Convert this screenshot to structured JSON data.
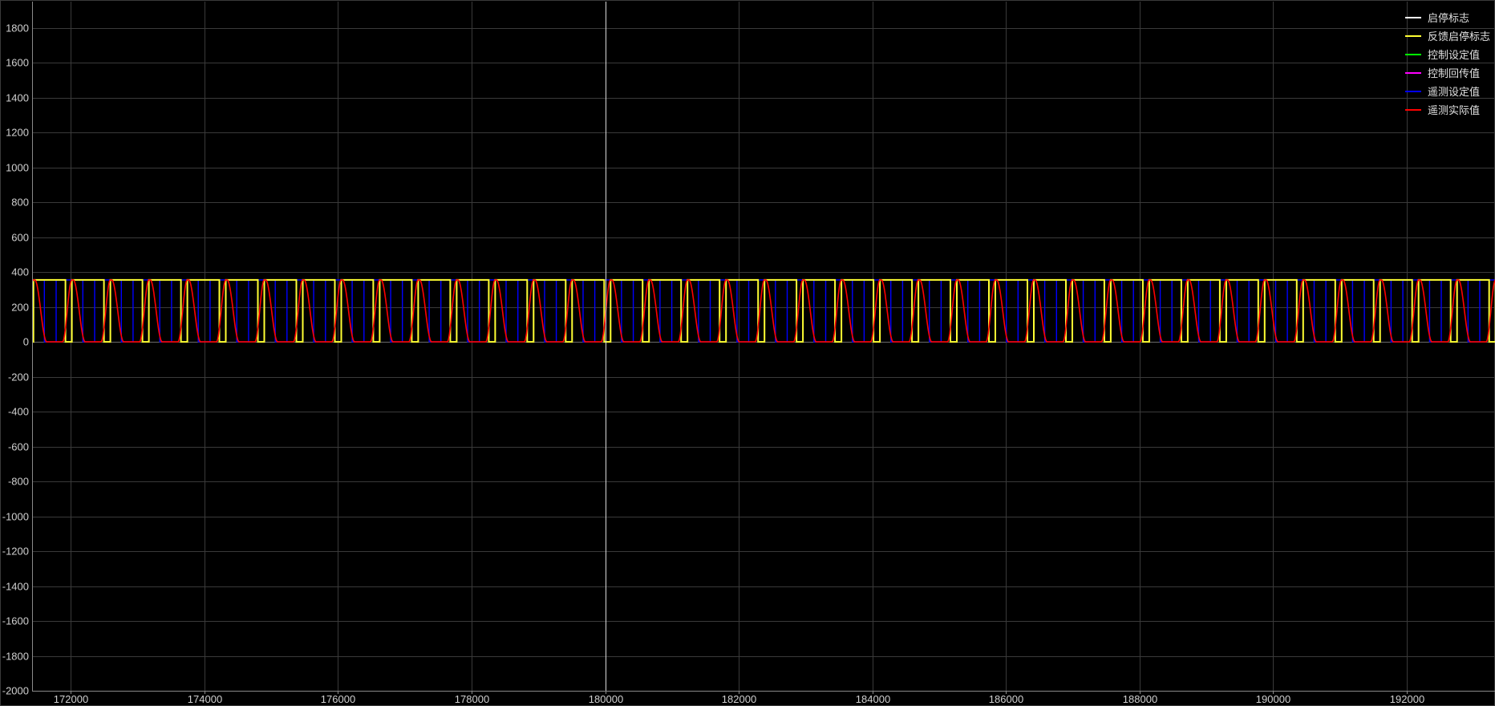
{
  "chart_data": {
    "type": "line",
    "title": "",
    "xlabel": "",
    "ylabel": "",
    "xlim": [
      171420,
      193320
    ],
    "ylim": [
      -2000,
      1950
    ],
    "x_ticks": [
      172000,
      174000,
      176000,
      178000,
      180000,
      182000,
      184000,
      186000,
      188000,
      190000,
      192000
    ],
    "y_ticks": [
      1800,
      1600,
      1400,
      1200,
      1000,
      800,
      600,
      400,
      200,
      0,
      -200,
      -400,
      -600,
      -800,
      -1000,
      -1200,
      -1400,
      -1600,
      -1800,
      -2000
    ],
    "grid": true,
    "legend_position": "top-right",
    "cursor_x": 180000,
    "series": [
      {
        "name": "启停标志",
        "color": "#ffffff",
        "values": []
      },
      {
        "name": "反馈启停标志",
        "color": "#ffff33",
        "pattern": "square",
        "high": 355,
        "low": 0,
        "period": 576,
        "high_duration": 480,
        "start": 171440
      },
      {
        "name": "控制设定值",
        "color": "#00ff00",
        "values": []
      },
      {
        "name": "控制回传值",
        "color": "#ff00ff",
        "values": []
      },
      {
        "name": "遥测设定值",
        "color": "#0000ff",
        "pattern": "square",
        "high": 355,
        "low": 0,
        "period": 576,
        "high_duration": 400,
        "start": 171780
      },
      {
        "name": "遥测实际值",
        "color": "#ff0000",
        "pattern": "smooth-pulse",
        "high": 355,
        "low": 0,
        "period": 576,
        "rise": 140,
        "fall": 180,
        "hold_high": 20,
        "start": 171300
      }
    ]
  }
}
